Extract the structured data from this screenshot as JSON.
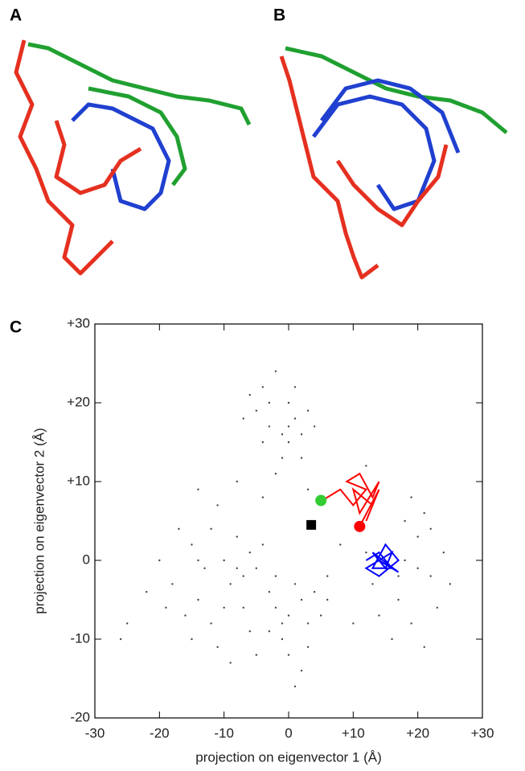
{
  "panel_labels": [
    "A",
    "B",
    "C"
  ],
  "chart_data": {
    "type": "scatter",
    "x_label": "projection on eigenvector 1 (Å)",
    "y_label": "projection on eigenvector 2 (Å)",
    "xlim": [
      -30,
      30
    ],
    "ylim": [
      -20,
      30
    ],
    "xticks": [
      {
        "value": -30,
        "label": "-30"
      },
      {
        "value": -20,
        "label": "-20"
      },
      {
        "value": -10,
        "label": "-10"
      },
      0,
      {
        "value": 10,
        "label": "+10"
      },
      {
        "value": 20,
        "label": "+20"
      },
      {
        "value": 30,
        "label": "+30"
      }
    ],
    "yticks": [
      {
        "value": -20,
        "label": "-20"
      },
      {
        "value": -10,
        "label": "-10"
      },
      0,
      {
        "value": 10,
        "label": "+10"
      },
      {
        "value": 20,
        "label": "+20"
      },
      {
        "value": 30,
        "label": "+30"
      }
    ],
    "grid": false,
    "series": [
      {
        "color": "#444444",
        "marker": "dot",
        "x": [
          -4,
          -2,
          0,
          1,
          -3,
          -5,
          2,
          0,
          -1,
          -6,
          3,
          -2,
          1,
          -4,
          0,
          -3,
          2,
          -1,
          4,
          -7,
          -20,
          -18,
          -15,
          -14,
          -12,
          -10,
          -9,
          -8,
          -7,
          -5,
          -11,
          -13,
          -16,
          -6,
          -4,
          -3,
          -9,
          -17,
          -19,
          -8,
          -12,
          -10,
          -14,
          -6,
          -2,
          -15,
          -11,
          -7,
          -22,
          -5,
          0,
          2,
          -1,
          3,
          1,
          -2,
          4,
          0,
          2,
          -1,
          5,
          1,
          3,
          -3,
          6,
          18,
          20,
          22,
          17,
          15,
          19,
          21,
          24,
          16,
          13,
          20,
          23,
          18,
          12,
          25,
          14,
          19,
          22,
          17,
          21,
          -8,
          -4,
          3,
          6,
          8,
          -14,
          10,
          12,
          -25,
          -26
        ],
        "y": [
          22,
          24,
          20,
          18,
          17,
          19,
          16,
          15,
          13,
          21,
          19,
          11,
          22,
          15,
          17,
          20,
          13,
          16,
          17,
          18,
          0,
          -3,
          2,
          -5,
          -8,
          0,
          -3,
          3,
          -6,
          -1,
          -11,
          -1,
          -7,
          -9,
          2,
          -4,
          -13,
          4,
          -6,
          -1,
          4,
          -6,
          0,
          1,
          -2,
          -10,
          7,
          -2,
          -4,
          -12,
          -7,
          -5,
          -10,
          -8,
          -3,
          -6,
          -4,
          -12,
          -14,
          -8,
          -7,
          -16,
          -11,
          -9,
          -2,
          0,
          3,
          -2,
          -5,
          2,
          -8,
          6,
          1,
          -10,
          -3,
          -1,
          -6,
          5,
          1,
          -3,
          -7,
          8,
          4,
          -2,
          -11,
          10,
          8,
          9,
          -5,
          2,
          9,
          -8,
          12,
          -8,
          -10
        ]
      },
      {
        "color": "#ff0000",
        "marker": "line",
        "x": [
          5,
          6,
          8,
          10,
          12,
          9,
          11,
          13,
          14,
          11,
          10,
          13,
          12,
          14,
          11
        ],
        "y": [
          7.6,
          8,
          9,
          7,
          9,
          10,
          11,
          8,
          10,
          6,
          9,
          7,
          5,
          9,
          4.3
        ]
      },
      {
        "color": "#0000ff",
        "marker": "line",
        "x": [
          12,
          14,
          16,
          13,
          15,
          17,
          14,
          12,
          16,
          15,
          13,
          17,
          14
        ],
        "y": [
          0,
          1,
          -1,
          -1,
          2,
          0,
          -2,
          -1,
          1,
          -1,
          1,
          -1.5,
          0
        ]
      },
      {
        "color": "#33cc33",
        "marker": "circle",
        "x": [
          5
        ],
        "y": [
          7.6
        ]
      },
      {
        "color": "#ff0000",
        "marker": "circle",
        "x": [
          11
        ],
        "y": [
          4.3
        ]
      },
      {
        "color": "#000000",
        "marker": "square",
        "x": [
          3.5
        ],
        "y": [
          4.5
        ]
      }
    ]
  }
}
